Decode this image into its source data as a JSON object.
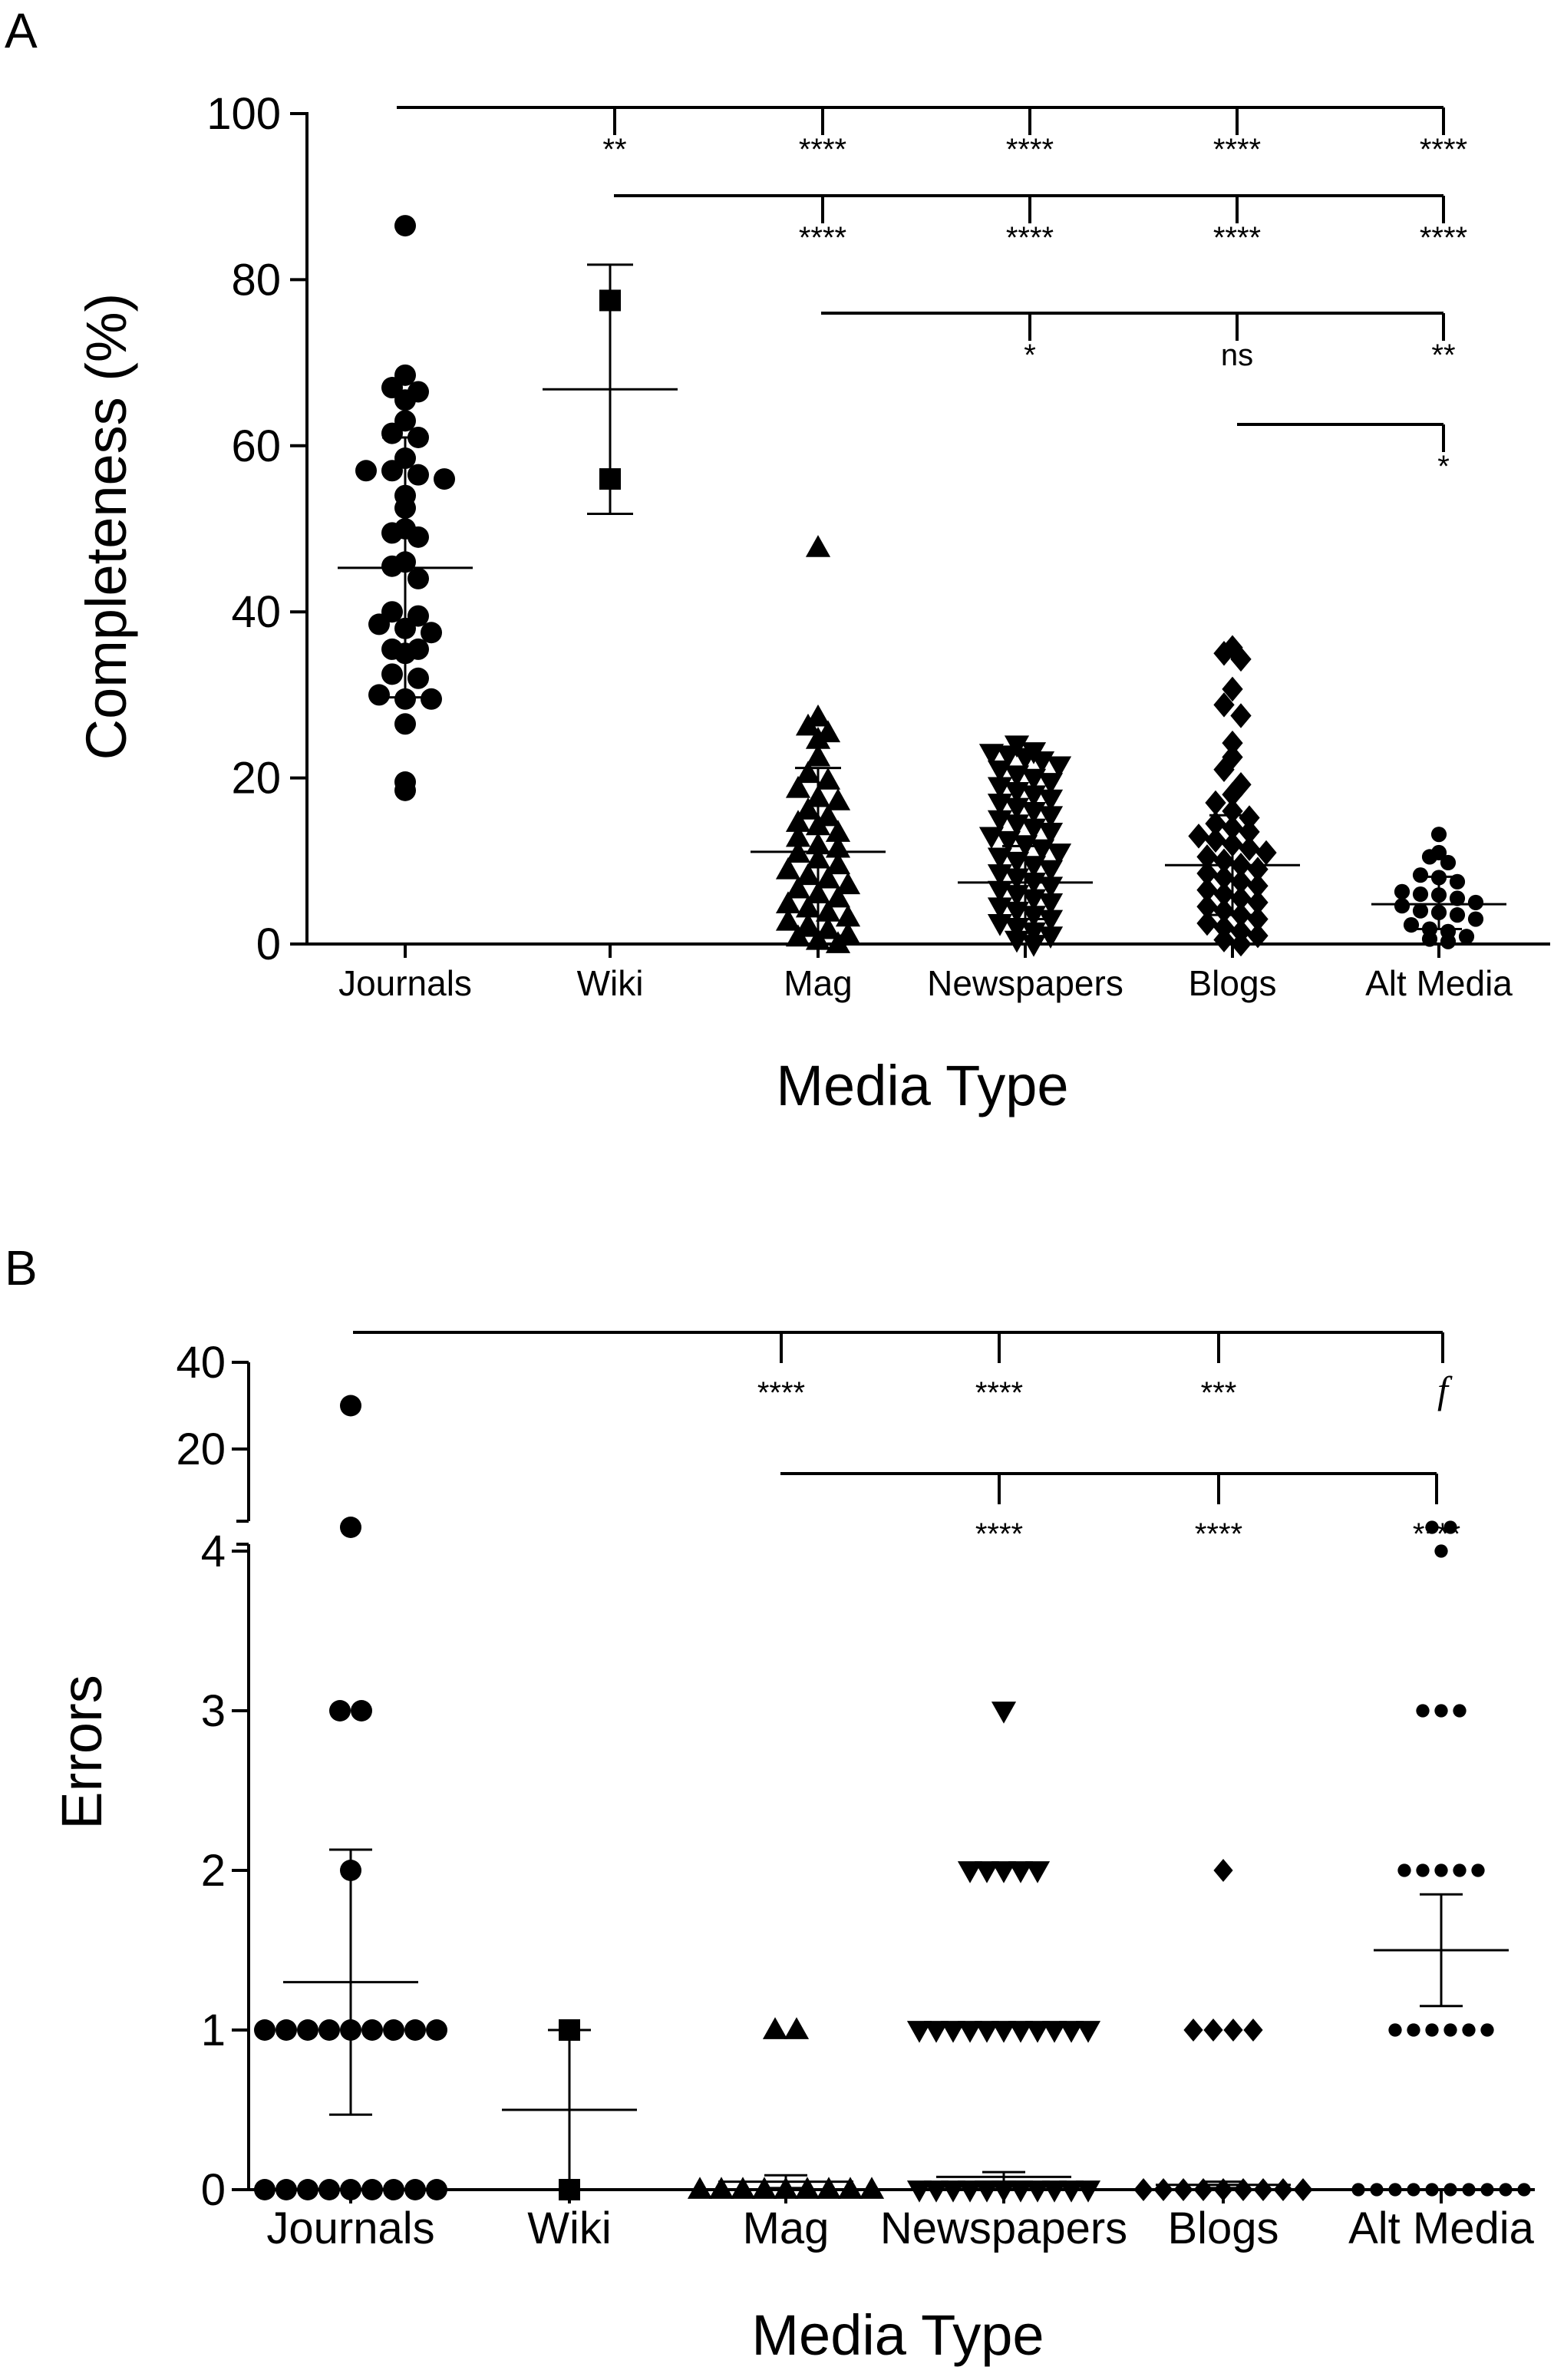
{
  "chart_data": [
    {
      "type": "scatter",
      "panel_label": "A",
      "xlabel": "Media Type",
      "ylabel": "Completeness (%)",
      "ylim": [
        0,
        100
      ],
      "yticks": [
        "0",
        "20",
        "40",
        "60",
        "80",
        "100"
      ],
      "categories": [
        "Journals",
        "Wiki",
        "Mag",
        "Newspapers",
        "Blogs",
        "Alt Media"
      ],
      "series": [
        {
          "category": "Journals",
          "marker": "circle",
          "values": [
            86.5,
            68.5,
            67,
            66.5,
            65.5,
            63,
            61.5,
            61,
            58.5,
            57,
            57,
            56.5,
            56,
            54,
            52.5,
            50,
            49.5,
            49,
            46,
            45.5,
            44,
            40,
            39.5,
            38.5,
            38,
            37.5,
            35.5,
            35.5,
            35,
            32.5,
            32,
            30,
            29.5,
            29.5,
            26.5,
            19.5,
            18.5
          ],
          "mean": 45.3,
          "sd_low": 29.7,
          "sd_high": 61.0
        },
        {
          "category": "Wiki",
          "marker": "square",
          "values": [
            77.5,
            56
          ],
          "mean": 66.8,
          "sd_low": 51.8,
          "sd_high": 81.8
        },
        {
          "category": "Mag",
          "marker": "triangle-up",
          "values": [
            47.7,
            27.3,
            26.2,
            25.4,
            24.6,
            22.5,
            20.5,
            19.7,
            18.7,
            17.6,
            17.2,
            16.1,
            15.3,
            14.6,
            14.2,
            13.4,
            12.8,
            11.9,
            11.5,
            10.9,
            10.2,
            9.5,
            8.9,
            8.2,
            7.8,
            7.1,
            6.6,
            6.0,
            5.5,
            4.8,
            4.3,
            3.8,
            3.2,
            2.7,
            2.2,
            1.7,
            1.1,
            0.8,
            0.4,
            0.0
          ],
          "mean": 11.1,
          "sd_low": 1.0,
          "sd_high": 21.2
        },
        {
          "category": "Newspapers",
          "marker": "triangle-down",
          "values": [
            24.0,
            23.2,
            23.0,
            22.8,
            22.5,
            22.1,
            21.5,
            21.0,
            20.4,
            20.0,
            19.5,
            19.0,
            18.4,
            18.0,
            17.5,
            17.0,
            16.5,
            16.0,
            15.5,
            15.0,
            14.5,
            14.0,
            13.5,
            13.0,
            12.5,
            12.0,
            11.5,
            11.0,
            10.5,
            10.0,
            9.5,
            9.0,
            8.5,
            8.0,
            7.5,
            7.0,
            6.5,
            6.0,
            5.5,
            5.0,
            4.5,
            4.0,
            3.5,
            3.0,
            2.5,
            2.0,
            1.5,
            1.0,
            0.5,
            0.0
          ],
          "mean": 7.4,
          "sd_low": 3.0,
          "sd_high": 11.8
        },
        {
          "category": "Blogs",
          "marker": "diamond",
          "values": [
            35.7,
            35.0,
            34.3,
            30.7,
            28.8,
            27.5,
            24.2,
            22.5,
            21.0,
            19.2,
            18.0,
            17.0,
            16.0,
            15.2,
            14.5,
            14.0,
            13.5,
            13.0,
            12.5,
            12.0,
            11.5,
            11.0,
            10.5,
            10.0,
            9.5,
            9.0,
            8.5,
            8.0,
            7.5,
            7.0,
            6.5,
            6.0,
            5.5,
            5.0,
            4.5,
            4.0,
            3.5,
            3.0,
            2.5,
            2.0,
            1.5,
            1.0,
            0.5,
            0.0
          ],
          "mean": 9.5,
          "sd_low": 3.5,
          "sd_high": 15.5
        },
        {
          "category": "Alt Media",
          "marker": "small-circle",
          "values": [
            13.2,
            11.0,
            10.5,
            9.8,
            8.3,
            8.0,
            7.5,
            6.3,
            6.0,
            5.9,
            5.5,
            5.0,
            4.6,
            4.0,
            3.8,
            3.5,
            3.0,
            2.3,
            1.8,
            1.5,
            0.9,
            0.6,
            0.3
          ],
          "mean": 4.8,
          "sd_low": 1.8,
          "sd_high": 8.1
        }
      ],
      "comparisons": [
        {
          "from": "Journals",
          "to": "Wiki",
          "label": "**"
        },
        {
          "from": "Journals",
          "to": "Mag",
          "label": "****"
        },
        {
          "from": "Journals",
          "to": "Newspapers",
          "label": "****"
        },
        {
          "from": "Journals",
          "to": "Blogs",
          "label": "****"
        },
        {
          "from": "Journals",
          "to": "Alt Media",
          "label": "****"
        },
        {
          "from": "Wiki",
          "to": "Mag",
          "label": "****"
        },
        {
          "from": "Wiki",
          "to": "Newspapers",
          "label": "****"
        },
        {
          "from": "Wiki",
          "to": "Blogs",
          "label": "****"
        },
        {
          "from": "Wiki",
          "to": "Alt Media",
          "label": "****"
        },
        {
          "from": "Mag",
          "to": "Newspapers",
          "label": "*"
        },
        {
          "from": "Mag",
          "to": "Blogs",
          "label": "ns"
        },
        {
          "from": "Mag",
          "to": "Alt Media",
          "label": "**"
        },
        {
          "from": "Blogs",
          "to": "Alt Media",
          "label": "*"
        }
      ]
    },
    {
      "type": "scatter",
      "panel_label": "B",
      "xlabel": "Media Type",
      "ylabel": "Errors",
      "ylim": [
        0,
        40
      ],
      "axis_break": [
        4,
        20
      ],
      "yticks": [
        "0",
        "1",
        "2",
        "3",
        "4",
        "20",
        "40"
      ],
      "categories": [
        "Journals",
        "Wiki",
        "Mag",
        "Newspapers",
        "Blogs",
        "Alt Media"
      ],
      "series": [
        {
          "category": "Journals",
          "marker": "circle",
          "values": [
            30,
            3,
            3,
            2,
            1,
            1,
            1,
            1,
            1,
            1,
            1,
            1,
            1,
            1,
            0,
            0,
            0,
            0,
            0,
            0,
            0,
            0,
            0,
            0,
            0,
            0,
            0,
            0,
            0,
            0,
            0,
            0,
            0,
            0,
            0,
            0
          ],
          "mean": 1.3,
          "sem_low": 0.47,
          "sem_high": 2.13
        },
        {
          "category": "Wiki",
          "marker": "square",
          "values": [
            1,
            0
          ],
          "mean": 0.5,
          "sem_low": 0,
          "sem_high": 1
        },
        {
          "category": "Mag",
          "marker": "triangle-up",
          "values": [
            1,
            1,
            0,
            0,
            0,
            0,
            0,
            0,
            0,
            0,
            0,
            0,
            0,
            0,
            0,
            0,
            0,
            0,
            0,
            0,
            0,
            0,
            0,
            0,
            0,
            0,
            0,
            0,
            0,
            0,
            0,
            0,
            0,
            0,
            0,
            0,
            0,
            0,
            0,
            0
          ],
          "mean": 0.05,
          "sem_low": 0.01,
          "sem_high": 0.09
        },
        {
          "category": "Newspapers",
          "marker": "triangle-down",
          "values": [
            3,
            2,
            2,
            2,
            2,
            2,
            1,
            1,
            1,
            1,
            1,
            1,
            1,
            1,
            1,
            1,
            1,
            1,
            1,
            0,
            0,
            0,
            0,
            0,
            0,
            0,
            0,
            0,
            0,
            0,
            0,
            0,
            0,
            0,
            0,
            0,
            0,
            0,
            0,
            0,
            0,
            0,
            0,
            0,
            0,
            0,
            0,
            0,
            0,
            0
          ],
          "mean": 0.08,
          "sem_low": 0.05,
          "sem_high": 0.11
        },
        {
          "category": "Blogs",
          "marker": "diamond",
          "values": [
            2,
            1,
            1,
            1,
            1,
            0,
            0,
            0,
            0,
            0,
            0,
            0,
            0,
            0,
            0,
            0,
            0,
            0,
            0,
            0,
            0,
            0,
            0,
            0,
            0,
            0,
            0,
            0,
            0,
            0,
            0,
            0,
            0,
            0,
            0,
            0,
            0,
            0,
            0,
            0,
            0,
            0,
            0,
            0
          ],
          "mean": 0.03,
          "sem_low": 0.01,
          "sem_high": 0.05
        },
        {
          "category": "Alt Media",
          "marker": "small-circle",
          "values": [
            15,
            15,
            4,
            3,
            3,
            3,
            2,
            2,
            2,
            2,
            2,
            1,
            1,
            1,
            1,
            1,
            1,
            0,
            0,
            0,
            0,
            0,
            0,
            0,
            0,
            0,
            0
          ],
          "mean": 1.5,
          "sem_low": 1.15,
          "sem_high": 1.85
        }
      ],
      "comparisons": [
        {
          "from": "Journals",
          "to": "Mag",
          "label": "****"
        },
        {
          "from": "Journals",
          "to": "Newspapers",
          "label": "****"
        },
        {
          "from": "Journals",
          "to": "Blogs",
          "label": "***"
        },
        {
          "from": "Journals",
          "to": "Alt Media",
          "label": "f"
        },
        {
          "from": "Mag",
          "to": "Newspapers",
          "label": "****"
        },
        {
          "from": "Mag",
          "to": "Blogs",
          "label": "****"
        },
        {
          "from": "Mag",
          "to": "Alt Media",
          "label": "****"
        }
      ]
    }
  ]
}
